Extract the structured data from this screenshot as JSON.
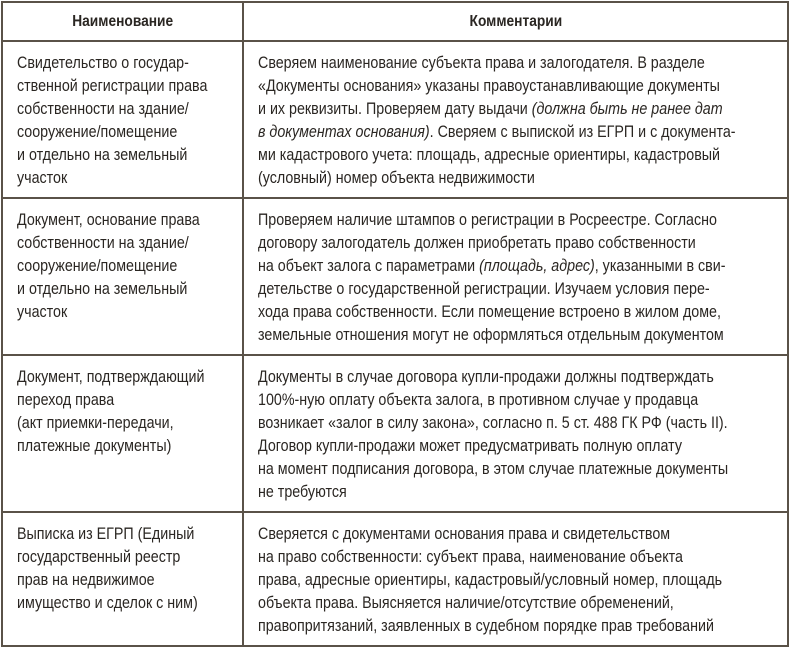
{
  "header": {
    "name": "Наименование",
    "comments": "Комментарии"
  },
  "rows": [
    {
      "name": [
        "Свидетельство о государ-",
        "ственной регистрации права",
        "собственности на здание/",
        "сооружение/помещение",
        "и отдельно на земельный",
        "участок"
      ],
      "comment": [
        [
          "Сверяем наименование субъекта права и залогодателя. В разделе"
        ],
        [
          "«Документы основания» указаны правоустанавливающие документы"
        ],
        [
          "и их реквизиты. Проверяем дату выдачи ",
          {
            "i": "(должна быть не ранее дат"
          }
        ],
        [
          {
            "i": "в документах основания)"
          },
          ". Сверяем с выпиской из ЕГРП и с документа-"
        ],
        [
          "ми кадастрового учета: площадь, адресные ориентиры, кадастровый"
        ],
        [
          "(условный) номер объекта недвижимости"
        ]
      ]
    },
    {
      "name": [
        "Документ, основание права",
        "собственности на здание/",
        "сооружение/помещение",
        "и отдельно на земельный",
        "участок"
      ],
      "comment": [
        [
          "Проверяем наличие штампов о регистрации в Росреестре. Согласно"
        ],
        [
          "договору залогодатель должен приобретать право собственности"
        ],
        [
          "на объект залога с параметрами ",
          {
            "i": "(площадь, адрес)"
          },
          ", указанными в сви-"
        ],
        [
          "детельстве о государственной регистрации. Изучаем условия пере-"
        ],
        [
          "хода права собственности. Если помещение встроено в жилом доме,"
        ],
        [
          "земельные отношения могут не оформляться отдельным документом"
        ]
      ]
    },
    {
      "name": [
        "Документ, подтверждающий",
        "переход права",
        "(акт приемки-передачи,",
        "платежные документы)"
      ],
      "comment": [
        [
          "Документы в случае договора купли-продажи должны подтверждать"
        ],
        [
          "100%-ную оплату объекта залога, в противном случае у продавца"
        ],
        [
          "возникает «залог в силу закона», согласно п. 5 ст. 488 ГК РФ (часть II)."
        ],
        [
          "Договор купли-продажи может предусматривать полную оплату"
        ],
        [
          "на момент подписания договора, в этом случае платежные документы"
        ],
        [
          "не требуются"
        ]
      ]
    },
    {
      "name": [
        "Выписка из ЕГРП (Единый",
        "государственный реестр",
        "прав на недвижимое",
        "имущество и сделок с ним)"
      ],
      "comment": [
        [
          "Сверяется с документами основания права и свидетельством"
        ],
        [
          "на право собственности: субъект права, наименование объекта"
        ],
        [
          "права, адресные ориентиры, кадастровый/условный номер, площадь"
        ],
        [
          "объекта права. Выясняется наличие/отсутствие обременений,"
        ],
        [
          "правопритязаний, заявленных в судебном порядке прав требований"
        ]
      ]
    }
  ]
}
